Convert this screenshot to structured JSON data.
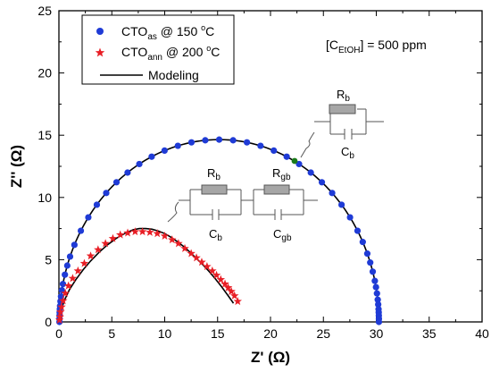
{
  "chart_data": {
    "type": "scatter",
    "xlabel": "Z' (Ω)",
    "ylabel": "Z'' (Ω)",
    "xlim": [
      0,
      40
    ],
    "ylim": [
      0,
      25
    ],
    "xticks": [
      "0",
      "5",
      "10",
      "15",
      "20",
      "25",
      "30",
      "35",
      "40"
    ],
    "yticks": [
      "0",
      "5",
      "10",
      "15",
      "20",
      "25"
    ],
    "grid": false,
    "legend_position": "top-left",
    "legend": [
      {
        "main": "CTO",
        "sub": "as",
        "rest": " @ 150 ",
        "deg": "o",
        "unit": "C",
        "marker": "circle",
        "color": "#1f3bd6"
      },
      {
        "main": "CTO",
        "sub": "ann",
        "rest": " @ 200 ",
        "deg": "o",
        "unit": "C",
        "marker": "star",
        "color": "#e81e25"
      },
      {
        "label": "Modeling",
        "marker": "line",
        "color": "#000000"
      }
    ],
    "annotation": {
      "open": "[C",
      "sub": "EtOH",
      "close": "] = 500 ppm"
    },
    "circuit_labels": {
      "single": {
        "r_main": "R",
        "r_sub": "b",
        "c_main": "C",
        "c_sub": "b"
      },
      "double_1": {
        "r_main": "R",
        "r_sub": "b",
        "c_main": "C",
        "c_sub": "b"
      },
      "double_2": {
        "r_main": "R",
        "r_sub": "gb",
        "c_main": "C",
        "c_sub": "gb"
      }
    },
    "series": [
      {
        "name": "CTOas @ 150 °C",
        "marker": "circle",
        "color": "#1f3bd6",
        "center": [
          15.15,
          0
        ],
        "radius": 15.1,
        "y_scale": 0.97,
        "point_angles_deg": [
          180,
          179,
          178,
          177,
          176,
          175,
          173.5,
          172,
          170,
          168,
          165,
          162,
          159,
          155,
          150,
          145,
          140,
          135,
          130,
          125,
          120,
          115,
          110,
          105,
          100,
          95,
          90,
          85,
          80,
          75,
          70,
          65,
          60,
          55,
          50,
          45,
          40,
          35,
          30,
          26,
          22,
          19,
          16,
          13,
          11,
          9,
          7,
          5.5,
          4,
          3,
          2,
          1,
          0
        ]
      },
      {
        "name": "CTOann @ 200 °C",
        "marker": "star",
        "color": "#e81e25",
        "x": [
          0.05,
          0.1,
          0.15,
          0.25,
          0.4,
          0.6,
          0.9,
          1.3,
          1.8,
          2.4,
          3.0,
          3.7,
          4.4,
          5.1,
          5.8,
          6.5,
          7.2,
          7.9,
          8.6,
          9.3,
          10.0,
          10.7,
          11.3,
          11.9,
          12.5,
          13.0,
          13.5,
          14.0,
          14.5,
          14.9,
          15.3,
          15.7,
          16.0,
          16.3,
          16.6,
          16.9
        ],
        "y": [
          0.15,
          0.4,
          0.8,
          1.2,
          1.7,
          2.3,
          2.9,
          3.5,
          4.1,
          4.7,
          5.3,
          5.8,
          6.3,
          6.7,
          7.0,
          7.15,
          7.25,
          7.25,
          7.2,
          7.1,
          6.9,
          6.6,
          6.3,
          5.9,
          5.5,
          5.15,
          4.8,
          4.45,
          4.1,
          3.75,
          3.4,
          3.05,
          2.75,
          2.45,
          2.1,
          1.65
        ]
      },
      {
        "name": "Modeling",
        "marker": "line",
        "color": "#000000",
        "curves": [
          {
            "center": [
              15.15,
              0
            ],
            "radius": 15.1,
            "y_scale": 0.97,
            "from_deg": 180,
            "to_deg": 0
          },
          {
            "x": [
              0.05,
              0.2,
              0.5,
              1.0,
              1.6,
              2.3,
              3.0,
              3.8,
              4.6,
              5.4,
              6.2,
              7.0,
              7.6,
              8.2,
              8.8,
              9.4,
              10.0,
              10.6,
              11.2,
              11.8,
              12.4,
              13.0,
              13.6,
              14.2,
              14.8,
              15.4,
              16.0,
              16.5
            ],
            "y": [
              0.2,
              0.9,
              1.7,
              2.6,
              3.4,
              4.2,
              4.9,
              5.6,
              6.2,
              6.7,
              7.1,
              7.4,
              7.5,
              7.5,
              7.45,
              7.3,
              7.1,
              6.8,
              6.45,
              6.05,
              5.6,
              5.1,
              4.6,
              4.05,
              3.45,
              2.8,
              2.1,
              1.5
            ]
          }
        ]
      }
    ]
  }
}
